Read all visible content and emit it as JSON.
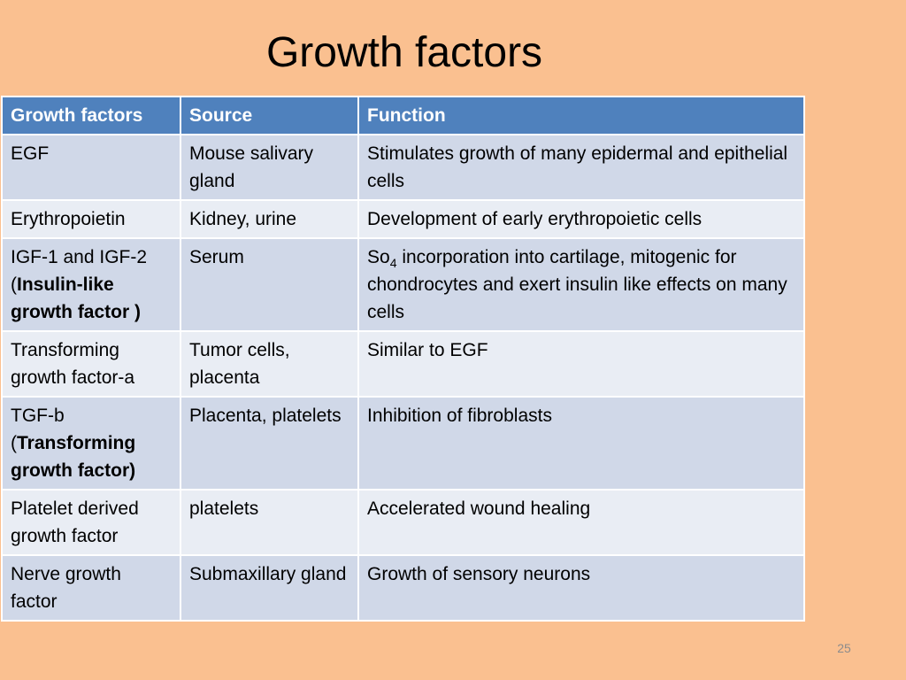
{
  "title": "Growth factors",
  "table": {
    "headers": [
      "Growth factors",
      "Source",
      "Function"
    ],
    "rows": [
      {
        "factor": "EGF",
        "source": "Mouse salivary gland",
        "function": "Stimulates growth of many epidermal and epithelial cells"
      },
      {
        "factor": "Erythropoietin",
        "source": "Kidney, urine",
        "function": "Development of early erythropoietic cells"
      },
      {
        "factor_prefix": "IGF-1 and IGF-2 (",
        "factor_bold": "Insulin-like growth factor )",
        "source": "Serum",
        "function_prefix": "So",
        "function_sub": "4",
        "function_rest": " incorporation into cartilage, mitogenic for chondrocytes and exert insulin like effects on many cells"
      },
      {
        "factor": "Transforming growth factor-a",
        "source": "Tumor cells, placenta",
        "function": "Similar to EGF"
      },
      {
        "factor_prefix": "TGF-b (",
        "factor_bold": "Transforming growth factor)",
        "source": "Placenta, platelets",
        "function": "Inhibition of fibroblasts"
      },
      {
        "factor": "Platelet derived growth factor",
        "source": "platelets",
        "function": "Accelerated wound healing"
      },
      {
        "factor": "Nerve growth factor",
        "source": "Submaxillary gland",
        "function": "Growth of sensory neurons"
      }
    ]
  },
  "page_number": "25",
  "colors": {
    "background": "#FAC090",
    "header_fill": "#4F81BD",
    "row_fill_dark": "#D0D8E8",
    "row_fill_light": "#E9EDF4"
  }
}
